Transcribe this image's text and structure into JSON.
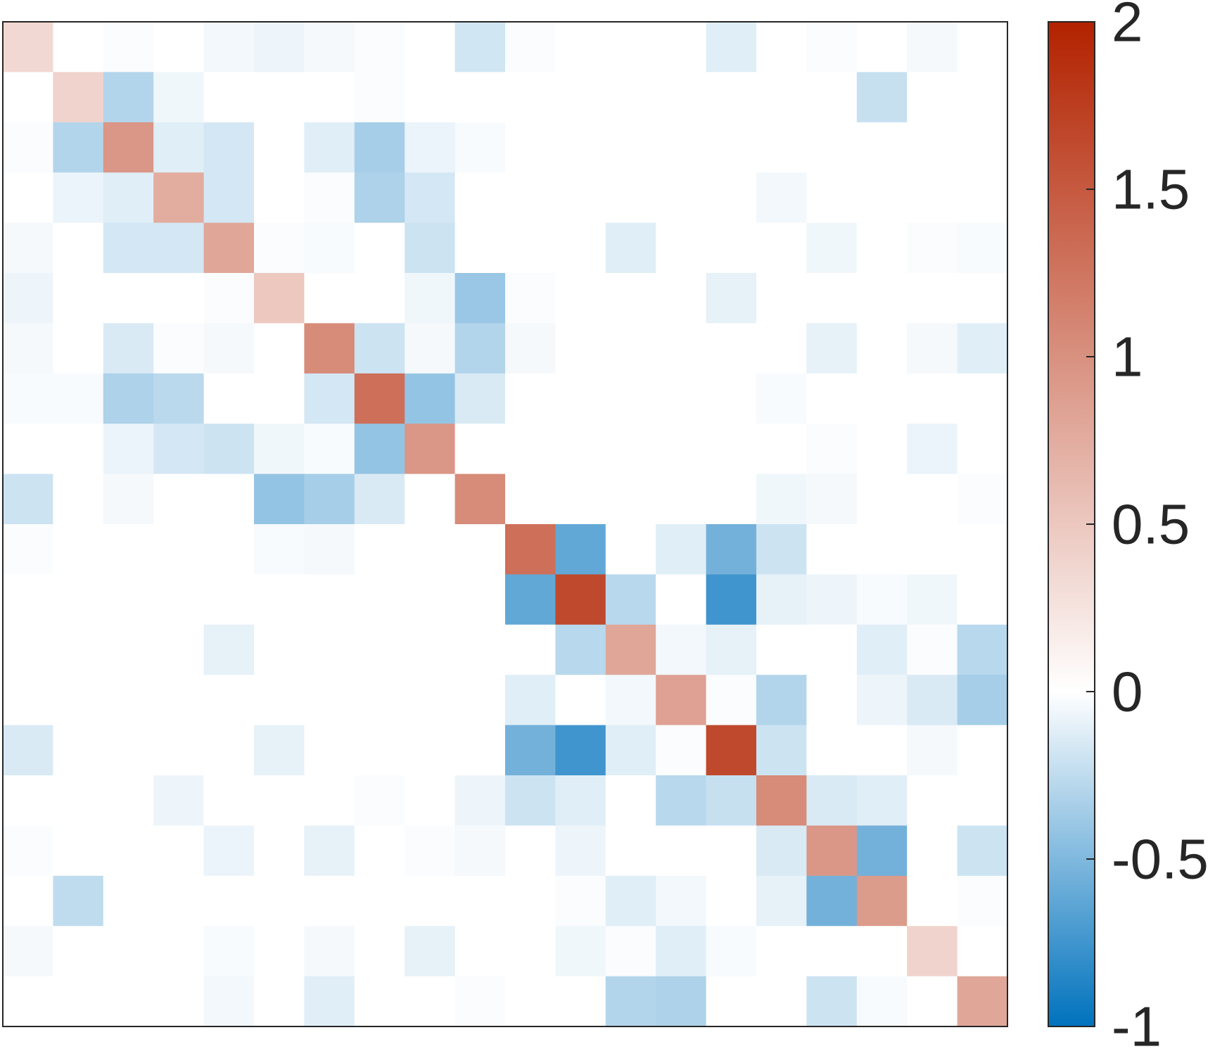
{
  "chart_data": {
    "type": "heatmap",
    "title": "",
    "xlabel": "",
    "ylabel": "",
    "rows": 20,
    "cols": 20,
    "matrix": [
      [
        0.35,
        0,
        -0.02,
        0,
        -0.05,
        -0.07,
        -0.04,
        -0.02,
        0,
        -0.18,
        -0.02,
        0,
        0,
        0,
        -0.12,
        0,
        -0.02,
        0,
        -0.04,
        0
      ],
      [
        0,
        0.4,
        -0.3,
        -0.06,
        0,
        0,
        0,
        -0.02,
        0,
        0,
        0,
        0,
        0,
        0,
        0,
        0,
        0,
        -0.22,
        0,
        0
      ],
      [
        -0.02,
        -0.3,
        0.95,
        -0.12,
        -0.17,
        0,
        -0.12,
        -0.35,
        -0.08,
        -0.03,
        0,
        0,
        0,
        0,
        0,
        0,
        0,
        0,
        0,
        0
      ],
      [
        0,
        -0.08,
        -0.12,
        0.75,
        -0.17,
        0,
        -0.02,
        -0.32,
        -0.17,
        0,
        0,
        0,
        0,
        0,
        0,
        -0.05,
        0,
        0,
        0,
        0
      ],
      [
        -0.04,
        0,
        -0.17,
        -0.17,
        0.8,
        -0.02,
        -0.03,
        0,
        -0.2,
        0,
        0,
        0,
        -0.12,
        0,
        0,
        0,
        -0.06,
        0,
        -0.02,
        -0.03
      ],
      [
        -0.07,
        0,
        0,
        0,
        -0.02,
        0.5,
        0,
        0,
        -0.06,
        -0.4,
        -0.02,
        0,
        0,
        0,
        -0.1,
        0,
        0,
        0,
        0,
        0
      ],
      [
        -0.04,
        0,
        -0.15,
        -0.02,
        -0.04,
        0,
        1.05,
        -0.2,
        -0.04,
        -0.3,
        -0.04,
        0,
        0,
        0,
        0,
        0,
        -0.1,
        0,
        -0.04,
        -0.12
      ],
      [
        -0.03,
        -0.03,
        -0.32,
        -0.27,
        0,
        0,
        -0.17,
        1.3,
        -0.42,
        -0.15,
        0,
        0,
        0,
        0,
        0,
        -0.03,
        0,
        0,
        0,
        0
      ],
      [
        0,
        0,
        -0.08,
        -0.17,
        -0.2,
        -0.06,
        -0.03,
        -0.42,
        0.95,
        0,
        0,
        0,
        0,
        0,
        0,
        0,
        -0.02,
        0,
        -0.08,
        0
      ],
      [
        -0.2,
        0,
        -0.04,
        0,
        0,
        -0.42,
        -0.35,
        -0.15,
        0,
        1.05,
        0,
        0,
        0,
        0,
        0,
        -0.06,
        -0.04,
        0,
        0,
        -0.02
      ],
      [
        -0.02,
        0,
        0,
        0,
        0,
        -0.03,
        -0.04,
        0,
        0,
        0,
        1.3,
        -0.62,
        0,
        -0.12,
        -0.55,
        -0.2,
        0,
        0,
        0,
        0
      ],
      [
        0,
        0,
        0,
        0,
        0,
        0,
        0,
        0,
        0,
        0,
        -0.62,
        1.65,
        -0.28,
        0,
        -0.75,
        -0.1,
        -0.07,
        -0.03,
        -0.06,
        0
      ],
      [
        0,
        0,
        0,
        0,
        -0.1,
        0,
        0,
        0,
        0,
        0,
        0,
        -0.28,
        0.8,
        -0.05,
        -0.1,
        0,
        0,
        -0.12,
        -0.02,
        -0.28
      ],
      [
        0,
        0,
        0,
        0,
        0,
        0,
        0,
        0,
        0,
        0,
        -0.12,
        0,
        -0.05,
        0.85,
        -0.02,
        -0.3,
        0,
        -0.07,
        -0.15,
        -0.35
      ],
      [
        -0.15,
        0,
        0,
        0,
        0,
        -0.1,
        0,
        0,
        0,
        0,
        -0.55,
        -0.75,
        -0.12,
        -0.02,
        1.65,
        -0.2,
        0,
        0,
        -0.04,
        0
      ],
      [
        0,
        0,
        0,
        -0.07,
        0,
        0,
        0,
        -0.02,
        0,
        -0.07,
        -0.2,
        -0.12,
        0,
        -0.28,
        -0.22,
        1.05,
        -0.15,
        -0.12,
        0,
        0
      ],
      [
        -0.02,
        0,
        0,
        0,
        -0.08,
        0,
        -0.1,
        0,
        -0.02,
        -0.04,
        0,
        -0.07,
        0,
        0,
        0,
        -0.15,
        0.95,
        -0.55,
        0,
        -0.2
      ],
      [
        0,
        -0.25,
        0,
        0,
        0,
        0,
        0,
        0,
        0,
        0,
        0,
        -0.02,
        -0.12,
        -0.05,
        0,
        -0.1,
        -0.55,
        0.9,
        0,
        -0.02
      ],
      [
        -0.04,
        0,
        0,
        0,
        -0.03,
        0,
        -0.04,
        0,
        -0.1,
        0,
        0,
        -0.06,
        -0.02,
        -0.12,
        -0.03,
        0,
        0,
        0,
        0.4,
        0
      ],
      [
        0,
        0,
        0,
        0,
        -0.05,
        0,
        -0.12,
        0,
        0,
        -0.02,
        0,
        0,
        -0.3,
        -0.32,
        0,
        0,
        -0.2,
        -0.03,
        0,
        0.8
      ]
    ],
    "colorbar": {
      "range": [
        -1,
        2
      ],
      "ticks": [
        2,
        1.5,
        1,
        0.5,
        0,
        -0.5,
        -1
      ],
      "tick_labels": [
        "2",
        "1.5",
        "1",
        "0.5",
        "0",
        "-0.5",
        "-1"
      ],
      "low_color": "#0072bd",
      "mid_color": "#ffffff",
      "high_color": "#b22200"
    },
    "grid": false,
    "legend": "none"
  }
}
